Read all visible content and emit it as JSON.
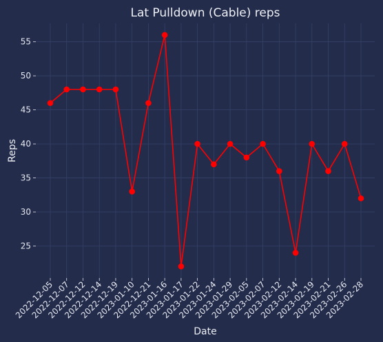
{
  "colors": {
    "background": "#232c4a",
    "grid": "#34416a",
    "text": "#eef0f6",
    "series": "#ff0000"
  },
  "chart_data": {
    "type": "line",
    "title": "Lat Pulldown (Cable) reps",
    "xlabel": "Date",
    "ylabel": "Reps",
    "grid": true,
    "markers": "circle",
    "x": [
      "2022-12-05",
      "2022-12-07",
      "2022-12-12",
      "2022-12-14",
      "2022-12-19",
      "2023-01-10",
      "2022-12-21",
      "2023-01-16",
      "2023-01-17",
      "2023-01-22",
      "2023-01-24",
      "2023-01-29",
      "2023-02-05",
      "2023-02-07",
      "2023-02-12",
      "2023-02-14",
      "2023-02-19",
      "2023-02-21",
      "2023-02-26",
      "2023-02-28"
    ],
    "series": [
      {
        "color": "#ff0000",
        "values": [
          46,
          48,
          48,
          48,
          48,
          33,
          46,
          56,
          22,
          40,
          37,
          40,
          38,
          40,
          36,
          24,
          40,
          36,
          40,
          32
        ]
      }
    ],
    "ylim": [
      20.3,
      57.7
    ],
    "yticks": [
      25,
      30,
      35,
      40,
      45,
      50,
      55
    ]
  }
}
